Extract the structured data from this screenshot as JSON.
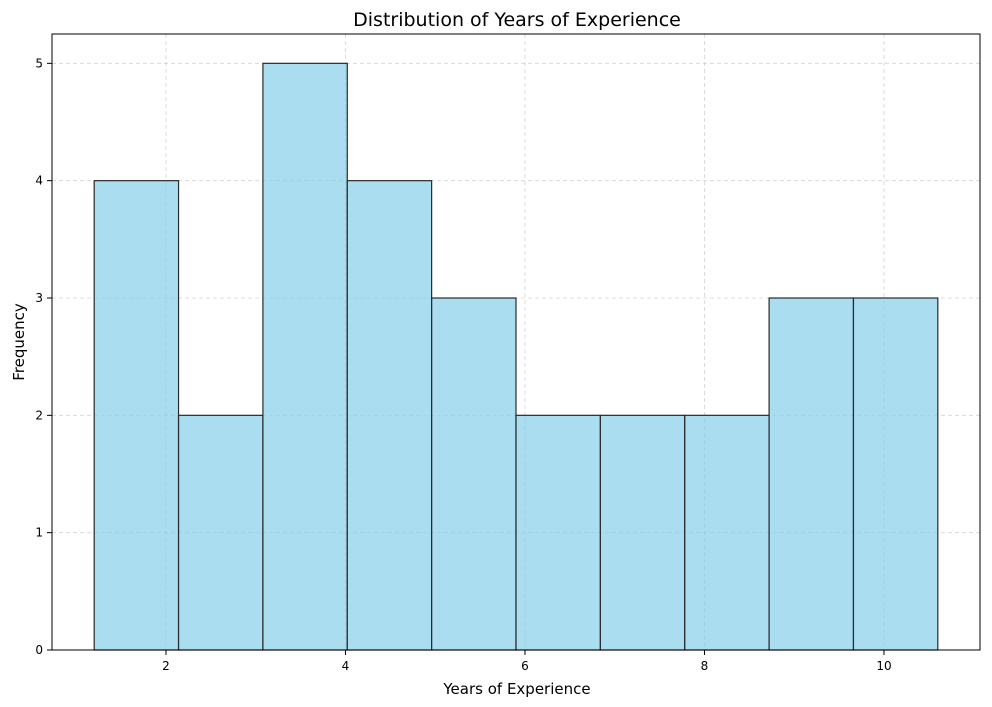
{
  "chart_data": {
    "type": "bar",
    "title": "Distribution of Years of Experience",
    "xlabel": "Years of Experience",
    "ylabel": "Frequency",
    "bin_edges": [
      1.2,
      2.14,
      3.08,
      4.02,
      4.96,
      5.9,
      6.84,
      7.78,
      8.72,
      9.66,
      10.6
    ],
    "values": [
      4,
      2,
      5,
      4,
      3,
      2,
      2,
      2,
      3,
      3
    ],
    "xlim": [
      0.73,
      11.07
    ],
    "ylim": [
      0,
      5.25
    ],
    "xticks": [
      2,
      4,
      6,
      8,
      10
    ],
    "yticks": [
      0,
      1,
      2,
      3,
      4,
      5
    ],
    "grid": true,
    "bar_color": "#87CEEB",
    "bar_alpha": 0.7,
    "edge_color": "#000000"
  }
}
